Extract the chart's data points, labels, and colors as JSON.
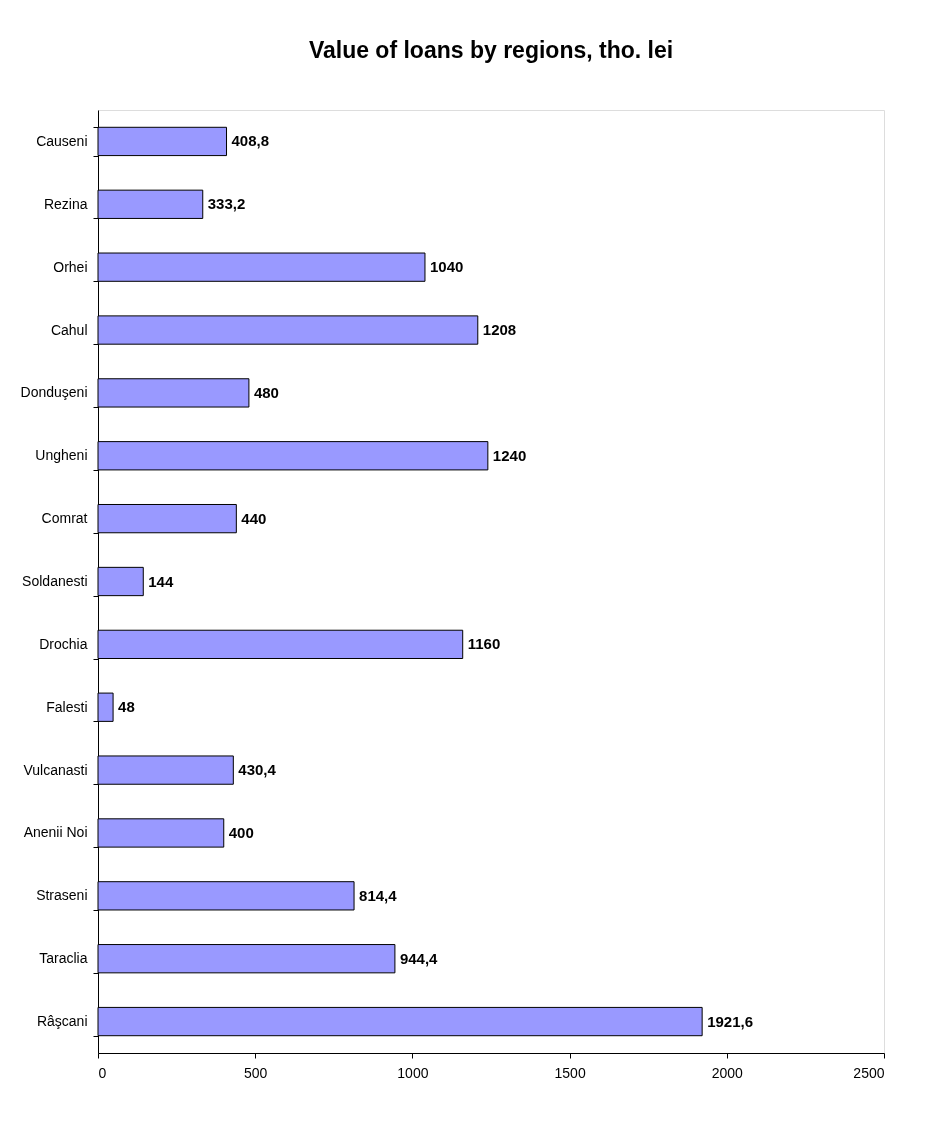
{
  "chart_data": {
    "type": "bar",
    "orientation": "horizontal",
    "title": "Value of loans by regions, tho. lei",
    "categories": [
      "Causeni",
      "Rezina",
      "Orhei",
      "Cahul",
      "Donduşeni",
      "Ungheni",
      "Comrat",
      "Soldanesti",
      "Drochia",
      "Falesti",
      "Vulcanasti",
      "Anenii Noi",
      "Straseni",
      "Taraclia",
      "Râşcani"
    ],
    "values": [
      408.8,
      333.2,
      1040,
      1208,
      480,
      1240,
      440,
      144,
      1160,
      48,
      430.4,
      400,
      814.4,
      944.4,
      1921.6
    ],
    "value_labels": [
      "408,8",
      "333,2",
      "1040",
      "1208",
      "480",
      "1240",
      "440",
      "144",
      "1160",
      "48",
      "430,4",
      "400",
      "814,4",
      "944,4",
      "1921,6"
    ],
    "color": "#9999ff",
    "xlim": [
      0,
      2500
    ],
    "xticks": [
      0,
      500,
      1000,
      1500,
      2000,
      2500
    ],
    "grid": false
  }
}
